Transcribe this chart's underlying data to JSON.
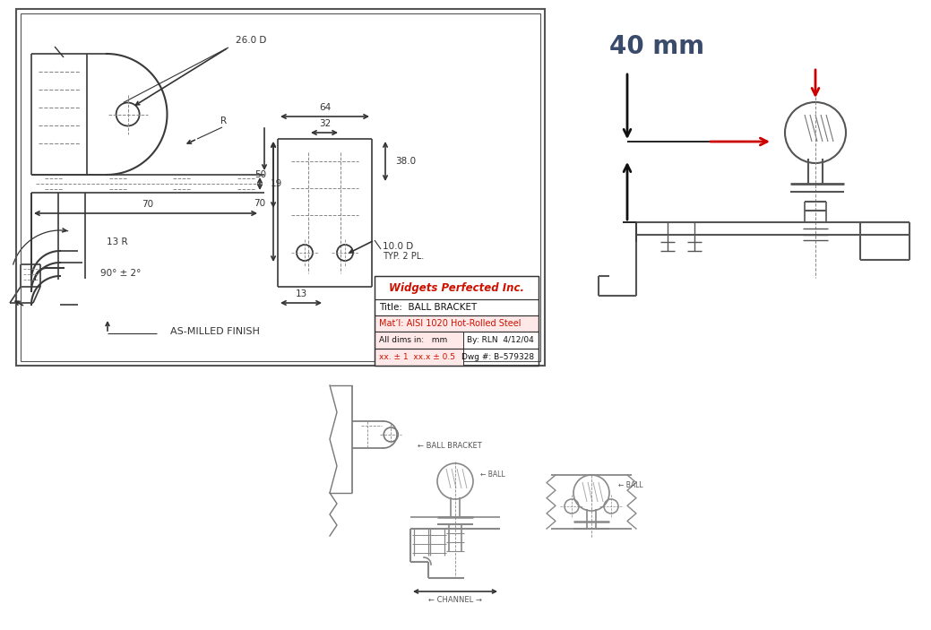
{
  "bg_color": "#ffffff",
  "lc": "#3a3a3a",
  "dc": "#333333",
  "rc": "#cc0000",
  "sc": "#888888",
  "company": "Widgets Perfected Inc.",
  "title_label": "Title:  BALL BRACKET",
  "material": "Mat’l: AISI 1020 Hot-Rolled Steel",
  "dims_line1": "All dims in:   mm",
  "dims_line2": "By: RLN  4/12/04",
  "tol_line1": "xx. ± 1  xx.x ± 0.5",
  "tol_line2": "Dwg #: B–579328",
  "finish_label": "AS-MILLED FINISH",
  "note_40mm": "40 mm"
}
